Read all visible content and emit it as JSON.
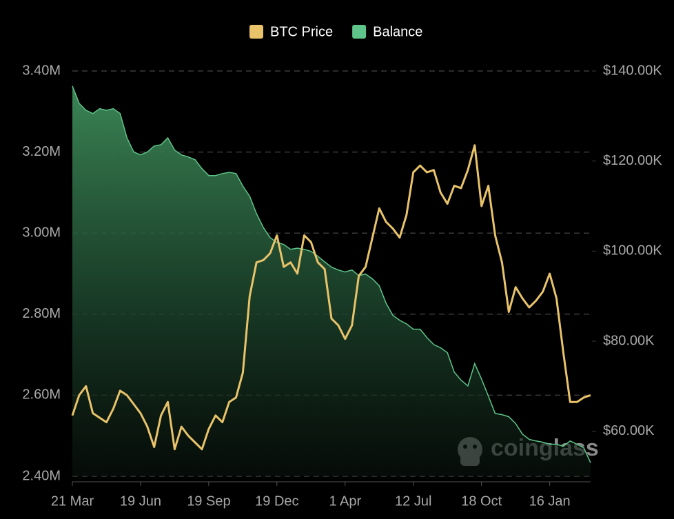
{
  "chart_data": {
    "type": "line-area",
    "legend": "top",
    "grid": true,
    "watermark": "coinglass",
    "categories": [
      "21 Mar",
      null,
      null,
      null,
      null,
      null,
      null,
      null,
      null,
      null,
      "19 Jun",
      null,
      null,
      null,
      null,
      null,
      null,
      null,
      null,
      null,
      "19 Sep",
      null,
      null,
      null,
      null,
      null,
      null,
      null,
      null,
      null,
      "19 Dec",
      null,
      null,
      null,
      null,
      null,
      null,
      null,
      null,
      null,
      "1 Apr",
      null,
      null,
      null,
      null,
      null,
      null,
      null,
      null,
      null,
      "12 Jul",
      null,
      null,
      null,
      null,
      null,
      null,
      null,
      null,
      null,
      "18 Oct",
      null,
      null,
      null,
      null,
      null,
      null,
      null,
      null,
      null,
      "16 Jan",
      null,
      null,
      null,
      null,
      null,
      null
    ],
    "ylim": [
      2400000,
      3400000
    ],
    "yticks": [
      {
        "value": 2400000,
        "label": "2.40M"
      },
      {
        "value": 2600000,
        "label": "2.60M"
      },
      {
        "value": 2800000,
        "label": "2.80M"
      },
      {
        "value": 3000000,
        "label": "3.00M"
      },
      {
        "value": 3200000,
        "label": "3.20M"
      },
      {
        "value": 3400000,
        "label": "3.40M"
      }
    ],
    "y2lim": [
      50000,
      140000
    ],
    "y2ticks": [
      {
        "value": 60000,
        "label": "$60.00K"
      },
      {
        "value": 80000,
        "label": "$80.00K"
      },
      {
        "value": 100000,
        "label": "$100.00K"
      },
      {
        "value": 120000,
        "label": "$120.00K"
      },
      {
        "value": 140000,
        "label": "$140.00K"
      }
    ],
    "series": [
      {
        "name": "BTC Price",
        "color": "#e8c36a",
        "axis": "y2",
        "values": [
          63500,
          68000,
          70000,
          64000,
          63000,
          62000,
          65000,
          69000,
          68000,
          66000,
          64000,
          61000,
          56500,
          63500,
          66500,
          56000,
          61000,
          59000,
          57500,
          56000,
          60500,
          63500,
          62000,
          66500,
          67500,
          73000,
          90000,
          97500,
          98000,
          99500,
          103500,
          96500,
          97500,
          95000,
          103500,
          102000,
          97500,
          96000,
          85000,
          83500,
          80500,
          83500,
          94500,
          96500,
          103000,
          109500,
          106500,
          105000,
          103000,
          108000,
          117500,
          119000,
          117500,
          118000,
          113000,
          110500,
          114500,
          114000,
          118000,
          123500,
          110000,
          114500,
          103500,
          97500,
          86500,
          92000,
          89500,
          87500,
          89000,
          91000,
          95000,
          89500,
          77500,
          66500,
          66500,
          67500,
          68000
        ]
      },
      {
        "name": "Balance",
        "color": "#5fc48a",
        "values": [
          3363000,
          3320000,
          3303000,
          3295000,
          3307000,
          3303000,
          3307000,
          3295000,
          3235000,
          3200000,
          3193000,
          3200000,
          3215000,
          3218000,
          3235000,
          3205000,
          3193000,
          3188000,
          3181000,
          3159000,
          3142000,
          3142000,
          3147000,
          3150000,
          3147000,
          3116000,
          3091000,
          3048000,
          3014000,
          2989000,
          2977000,
          2972000,
          2960000,
          2963000,
          2960000,
          2955000,
          2943000,
          2929000,
          2916000,
          2909000,
          2904000,
          2909000,
          2895000,
          2899000,
          2887000,
          2870000,
          2827000,
          2797000,
          2785000,
          2776000,
          2763000,
          2763000,
          2742000,
          2725000,
          2717000,
          2705000,
          2657000,
          2637000,
          2623000,
          2678000,
          2640000,
          2598000,
          2555000,
          2552000,
          2547000,
          2530000,
          2504000,
          2491000,
          2487000,
          2484000,
          2479000,
          2479000,
          2474000,
          2487000,
          2479000,
          2470000,
          2433000
        ]
      }
    ]
  }
}
